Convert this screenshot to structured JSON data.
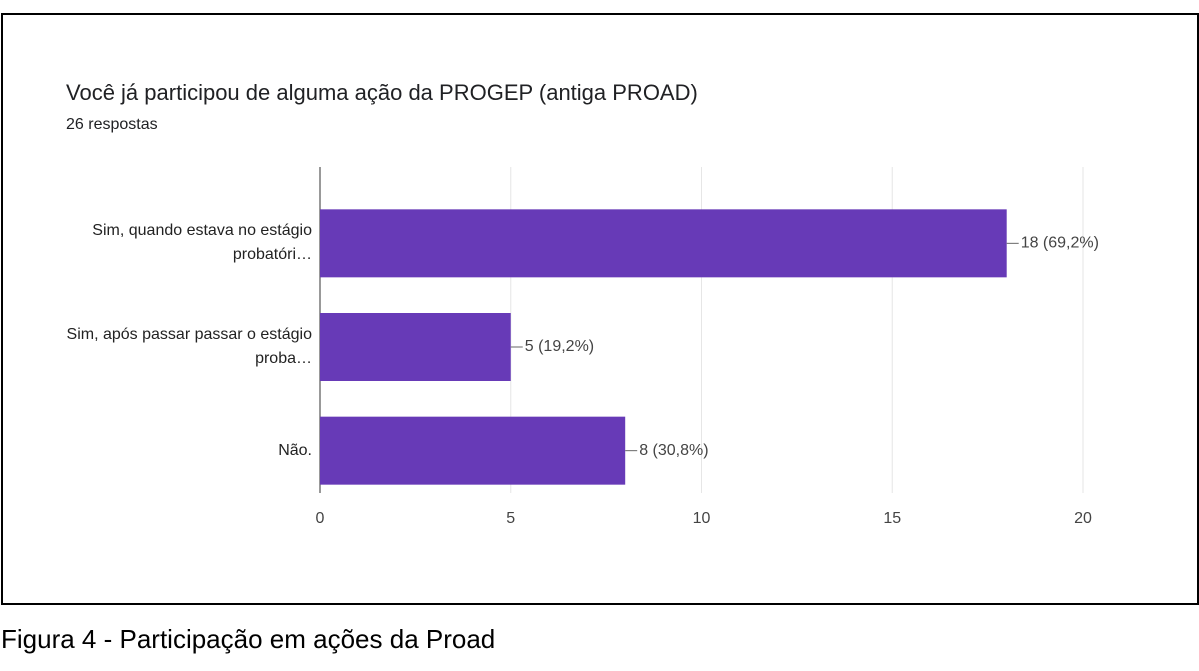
{
  "title": "Você já participou de alguma ação da PROGEP (antiga PROAD)",
  "subtitle": "26 respostas",
  "caption": "Figura 4 - Participação em ações da Proad",
  "chart_data": {
    "type": "bar",
    "orientation": "horizontal",
    "categories": [
      "Sim, quando estava no estágio probatóri…",
      "Sim, após passar passar o estágio proba…",
      "Não."
    ],
    "values": [
      18,
      5,
      8
    ],
    "value_labels": [
      "18 (69,2%)",
      "5 (19,2%)",
      "8 (30,8%)"
    ],
    "color": "#673ab7",
    "xlim": [
      0,
      20
    ],
    "xticks": [
      0,
      5,
      10,
      15,
      20
    ],
    "grid": true
  }
}
